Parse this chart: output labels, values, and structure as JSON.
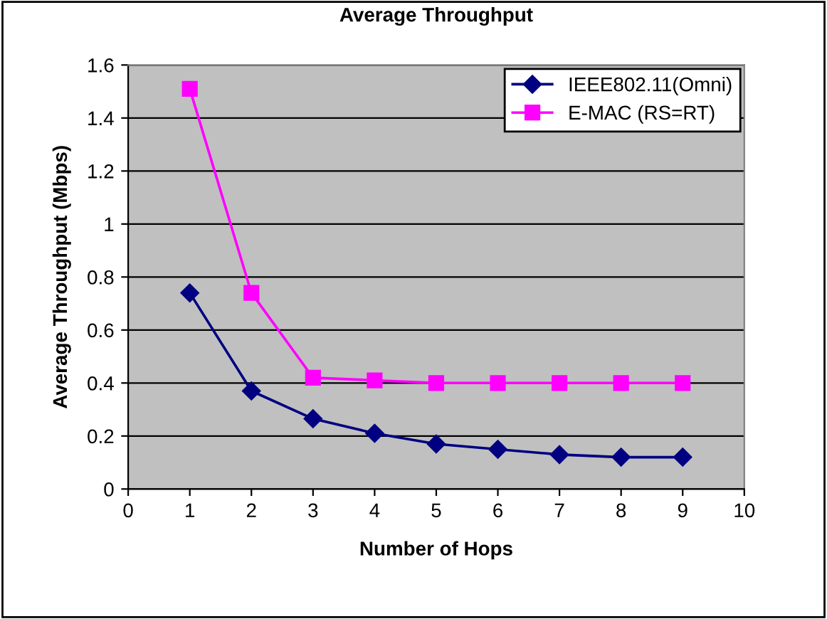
{
  "chart_data": {
    "type": "line",
    "title": "Average Throughput",
    "xlabel": "Number of Hops",
    "ylabel": "Average Throughput (Mbps)",
    "x": [
      1,
      2,
      3,
      4,
      5,
      6,
      7,
      8,
      9
    ],
    "series": [
      {
        "name": "IEEE802.11(Omni)",
        "color": "#000080",
        "marker": "diamond",
        "values": [
          0.74,
          0.37,
          0.265,
          0.21,
          0.17,
          0.15,
          0.13,
          0.12,
          0.12
        ]
      },
      {
        "name": "E-MAC (RS=RT)",
        "color": "#ff00ff",
        "marker": "square",
        "values": [
          1.51,
          0.74,
          0.42,
          0.41,
          0.4,
          0.4,
          0.4,
          0.4,
          0.4
        ]
      }
    ],
    "xlim": [
      0,
      10
    ],
    "xticks": [
      0,
      1,
      2,
      3,
      4,
      5,
      6,
      7,
      8,
      9,
      10
    ],
    "ylim": [
      0,
      1.6
    ],
    "yticks": [
      0,
      0.2,
      0.4,
      0.6,
      0.8,
      1,
      1.2,
      1.4,
      1.6
    ],
    "grid": "y",
    "legend": "top right",
    "line_style": "solid"
  }
}
